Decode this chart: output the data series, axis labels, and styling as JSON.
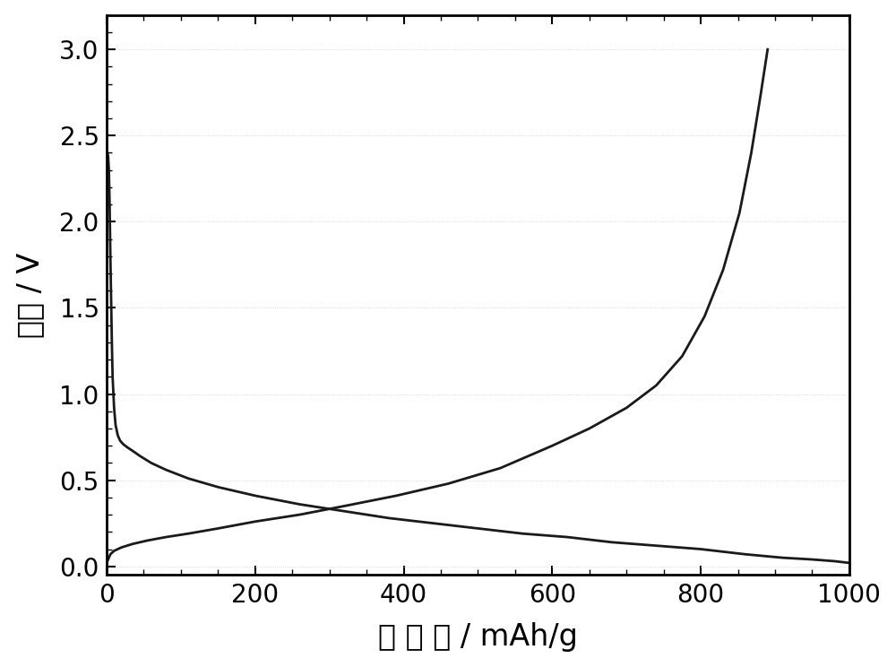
{
  "xlabel": "比 容 量 / mAh/g",
  "ylabel": "电压 / V",
  "xlim": [
    0,
    1000
  ],
  "ylim": [
    -0.05,
    3.2
  ],
  "yticks": [
    0.0,
    0.5,
    1.0,
    1.5,
    2.0,
    2.5,
    3.0
  ],
  "xticks": [
    0,
    200,
    400,
    600,
    800,
    1000
  ],
  "background_color": "#ffffff",
  "line_color": "#1a1a1a",
  "line_width": 2.0,
  "xlabel_fontsize": 24,
  "ylabel_fontsize": 24,
  "tick_fontsize": 20,
  "discharge_x": [
    1,
    2,
    3,
    4,
    5,
    6,
    7,
    8,
    10,
    12,
    15,
    18,
    22,
    28,
    35,
    45,
    60,
    80,
    110,
    150,
    200,
    260,
    320,
    380,
    440,
    500,
    560,
    620,
    680,
    740,
    800,
    860,
    910,
    950,
    980,
    1000
  ],
  "discharge_y": [
    2.4,
    2.38,
    2.3,
    2.1,
    1.8,
    1.55,
    1.3,
    1.1,
    0.92,
    0.82,
    0.76,
    0.73,
    0.71,
    0.69,
    0.67,
    0.64,
    0.6,
    0.56,
    0.51,
    0.46,
    0.41,
    0.36,
    0.32,
    0.28,
    0.25,
    0.22,
    0.19,
    0.17,
    0.14,
    0.12,
    0.1,
    0.07,
    0.05,
    0.04,
    0.03,
    0.02
  ],
  "charge_x": [
    0,
    2,
    5,
    10,
    20,
    35,
    55,
    80,
    110,
    150,
    200,
    260,
    320,
    390,
    460,
    530,
    600,
    650,
    700,
    740,
    775,
    805,
    830,
    852,
    868,
    880,
    890
  ],
  "charge_y": [
    0.02,
    0.04,
    0.07,
    0.09,
    0.11,
    0.13,
    0.15,
    0.17,
    0.19,
    0.22,
    0.26,
    0.3,
    0.35,
    0.41,
    0.48,
    0.57,
    0.7,
    0.8,
    0.92,
    1.05,
    1.22,
    1.45,
    1.72,
    2.05,
    2.4,
    2.72,
    3.0
  ]
}
